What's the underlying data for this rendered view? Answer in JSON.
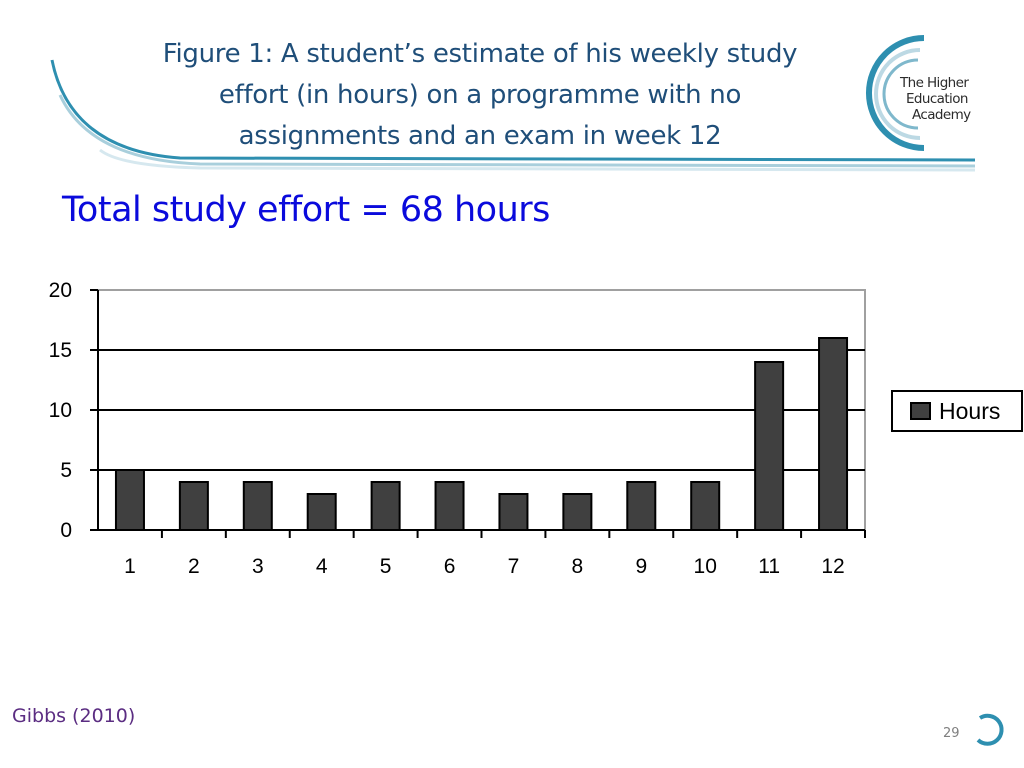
{
  "slide": {
    "title_lines": [
      "Figure 1: A student’s estimate of his weekly study",
      "effort (in hours) on a  programme  with no",
      "assignments and an exam in week 12"
    ],
    "subtitle": "Total study effort = 68 hours",
    "citation": "Gibbs (2010)",
    "page_number": "29",
    "logo_lines": [
      "The Higher",
      "Education",
      "Academy"
    ],
    "colors": {
      "title": "#1f4e79",
      "subtitle": "#0a0adc",
      "citation": "#5b2d82",
      "accent": "#2e8fb0"
    }
  },
  "chart_data": {
    "type": "bar",
    "categories": [
      "1",
      "2",
      "3",
      "4",
      "5",
      "6",
      "7",
      "8",
      "9",
      "10",
      "11",
      "12"
    ],
    "series": [
      {
        "name": "Hours",
        "values": [
          5,
          4,
          4,
          3,
          4,
          4,
          3,
          3,
          4,
          4,
          14,
          16
        ]
      }
    ],
    "title": "",
    "xlabel": "",
    "ylabel": "",
    "ylim": [
      0,
      20
    ],
    "yticks": [
      "0",
      "5",
      "10",
      "15",
      "20"
    ],
    "grid": true,
    "legend_position": "right",
    "bar_color": "#404040"
  }
}
